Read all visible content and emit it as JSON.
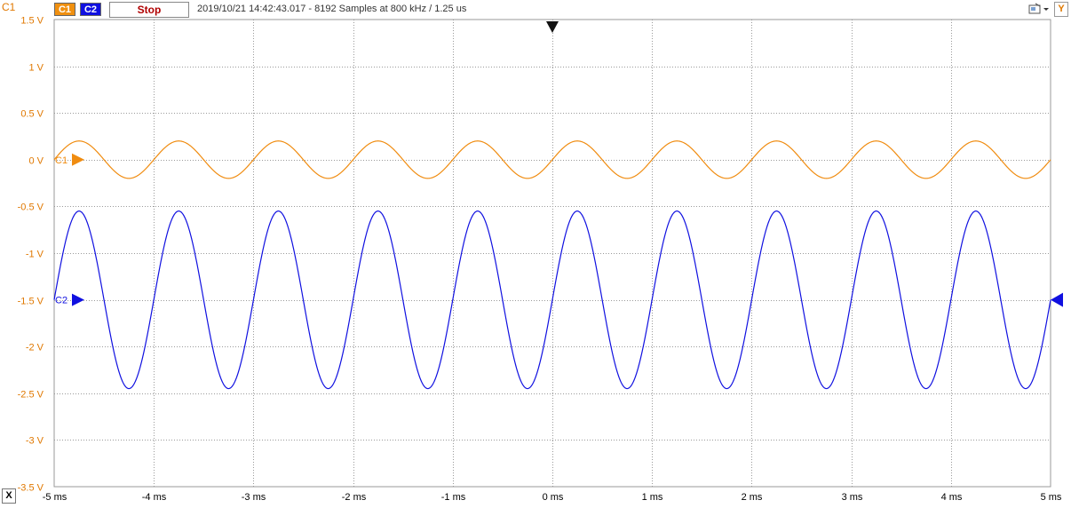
{
  "header": {
    "channel_title": "C1",
    "ch1_label": "C1",
    "ch2_label": "C2",
    "stop_label": "Stop",
    "status_text": "2019/10/21 14:42:43.017 - 8192 Samples at 800 kHz / 1.25 us",
    "y_label": "Y"
  },
  "footer": {
    "x_label": "X"
  },
  "colors": {
    "ch1": "#f08c10",
    "ch2": "#1010e0",
    "grid": "#9a9a9a",
    "axis_label": "#e07800"
  },
  "chart_data": {
    "type": "line",
    "xlabel": "",
    "ylabel": "",
    "xlim": [
      -5,
      5
    ],
    "ylim": [
      -3.5,
      1.5
    ],
    "x_ticks": [
      "-5 ms",
      "-4 ms",
      "-3 ms",
      "-2 ms",
      "-1 ms",
      "0 ms",
      "1 ms",
      "2 ms",
      "3 ms",
      "4 ms",
      "5 ms"
    ],
    "y_ticks": [
      "1.5 V",
      "1 V",
      "0.5 V",
      "0 V",
      "-0.5 V",
      "-1 V",
      "-1.5 V",
      "-2 V",
      "-2.5 V",
      "-3 V",
      "-3.5 V"
    ],
    "grid": true,
    "series": [
      {
        "name": "C1",
        "waveform": "sine",
        "frequency_khz": 1,
        "amplitude_v": 0.2,
        "offset_v": 0.0,
        "x_at_first_zero_ms": -5,
        "marker_label": "C1"
      },
      {
        "name": "C2",
        "waveform": "sine",
        "frequency_khz": 1,
        "amplitude_v": 0.95,
        "offset_v": -1.5,
        "x_at_first_zero_ms": -5,
        "marker_label": "C2"
      }
    ]
  }
}
